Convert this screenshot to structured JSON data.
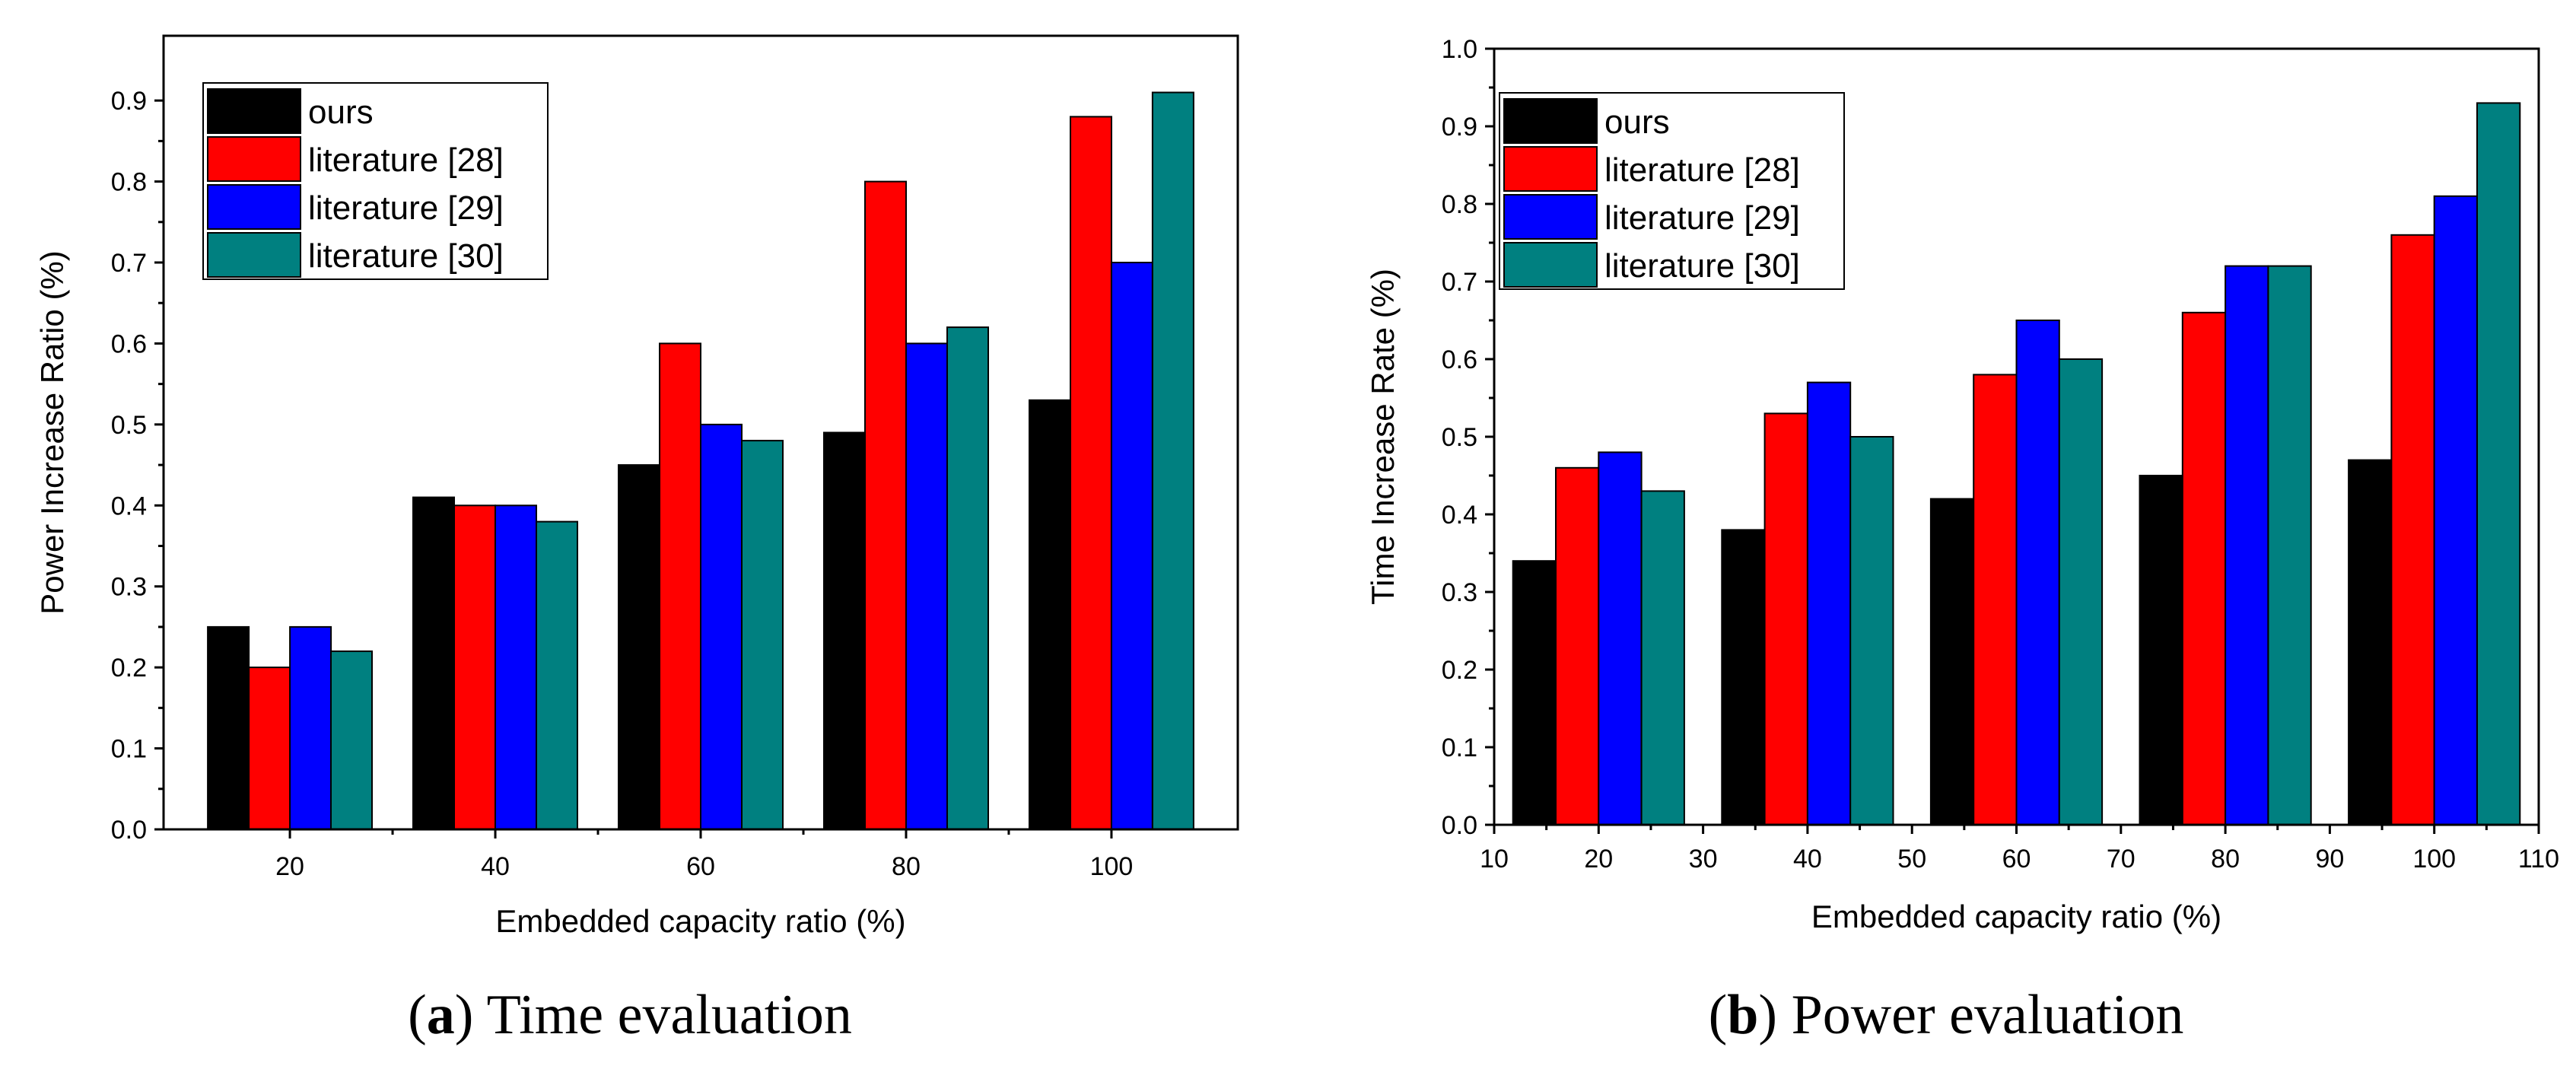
{
  "colors": {
    "ours": "#000000",
    "literature [28]": "#ff0000",
    "literature [29]": "#0000ff",
    "literature [30]": "#008080"
  },
  "chart_data": [
    {
      "type": "bar",
      "panel": "a",
      "caption_letter": "a",
      "caption_text": ") Time evaluation",
      "xlabel": "Embedded capacity ratio (%)",
      "ylabel": "Power Increase Ratio (%)",
      "x_axis": "categorical",
      "categories": [
        "20",
        "40",
        "60",
        "80",
        "100"
      ],
      "ylim": [
        0,
        0.98
      ],
      "yticks": [
        "0.0",
        "0.1",
        "0.2",
        "0.3",
        "0.4",
        "0.5",
        "0.6",
        "0.7",
        "0.8",
        "0.9"
      ],
      "legend_position": "top-left",
      "series": [
        {
          "name": "ours",
          "values": [
            0.25,
            0.41,
            0.45,
            0.49,
            0.53
          ]
        },
        {
          "name": "literature [28]",
          "values": [
            0.2,
            0.4,
            0.6,
            0.8,
            0.88
          ]
        },
        {
          "name": "literature [29]",
          "values": [
            0.25,
            0.4,
            0.5,
            0.6,
            0.7
          ]
        },
        {
          "name": "literature [30]",
          "values": [
            0.22,
            0.38,
            0.48,
            0.62,
            0.91
          ]
        }
      ]
    },
    {
      "type": "bar",
      "panel": "b",
      "caption_letter": "b",
      "caption_text": ") Power evaluation",
      "xlabel": "Embedded capacity ratio (%)",
      "ylabel": "Time Increase Rate (%)",
      "x_axis": "numeric",
      "categories": [
        "20",
        "40",
        "60",
        "80",
        "100"
      ],
      "xlim": [
        10,
        110
      ],
      "xticks": [
        "10",
        "20",
        "30",
        "40",
        "50",
        "60",
        "70",
        "80",
        "90",
        "100",
        "110"
      ],
      "ylim": [
        0,
        1.0
      ],
      "yticks": [
        "0.0",
        "0.1",
        "0.2",
        "0.3",
        "0.4",
        "0.5",
        "0.6",
        "0.7",
        "0.8",
        "0.9",
        "1.0"
      ],
      "legend_position": "top-left",
      "series": [
        {
          "name": "ours",
          "values": [
            0.34,
            0.38,
            0.42,
            0.45,
            0.47
          ]
        },
        {
          "name": "literature [28]",
          "values": [
            0.46,
            0.53,
            0.58,
            0.66,
            0.76
          ]
        },
        {
          "name": "literature [29]",
          "values": [
            0.48,
            0.57,
            0.65,
            0.72,
            0.81
          ]
        },
        {
          "name": "literature [30]",
          "values": [
            0.43,
            0.5,
            0.6,
            0.72,
            0.93
          ]
        }
      ]
    }
  ]
}
